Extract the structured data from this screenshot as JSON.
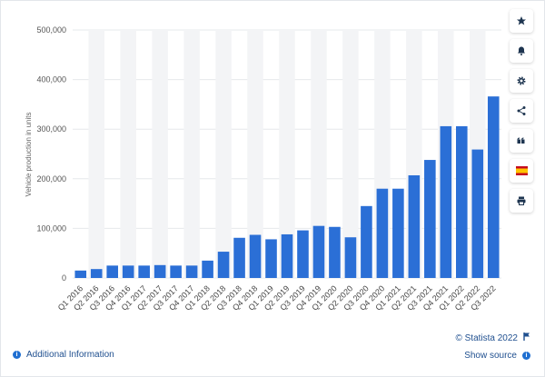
{
  "chart_data": {
    "type": "bar",
    "ylabel": "Vehicle production in units",
    "yticks": [
      "0",
      "100,000",
      "200,000",
      "300,000",
      "400,000",
      "500,000"
    ],
    "ylim": [
      0,
      500000
    ],
    "grid": true,
    "bar_color": "#2b6fd6",
    "categories": [
      "Q1 2016",
      "Q2 2016",
      "Q3 2016",
      "Q4 2016",
      "Q1 2017",
      "Q2 2017",
      "Q3 2017",
      "Q4 2017",
      "Q1 2018",
      "Q2 2018",
      "Q3 2018",
      "Q4 2018",
      "Q1 2019",
      "Q2 2019",
      "Q3 2019",
      "Q4 2019",
      "Q1 2020",
      "Q2 2020",
      "Q3 2020",
      "Q4 2020",
      "Q1 2021",
      "Q2 2021",
      "Q3 2021",
      "Q4 2021",
      "Q1 2022",
      "Q2 2022",
      "Q3 2022"
    ],
    "values": [
      15000,
      18000,
      25000,
      25000,
      25000,
      26000,
      25000,
      25000,
      35000,
      53000,
      81000,
      87000,
      78000,
      88000,
      96000,
      105000,
      103000,
      82000,
      145000,
      180000,
      180000,
      207000,
      238000,
      306000,
      306000,
      259000,
      366000
    ]
  },
  "toolbar": {
    "items": [
      {
        "name": "star-icon"
      },
      {
        "name": "bell-icon"
      },
      {
        "name": "gear-icon"
      },
      {
        "name": "share-icon"
      },
      {
        "name": "quote-icon"
      },
      {
        "name": "spain-flag-icon"
      },
      {
        "name": "print-icon"
      }
    ]
  },
  "footer": {
    "additional_info": "Additional Information",
    "copyright": "© Statista 2022",
    "show_source": "Show source"
  }
}
